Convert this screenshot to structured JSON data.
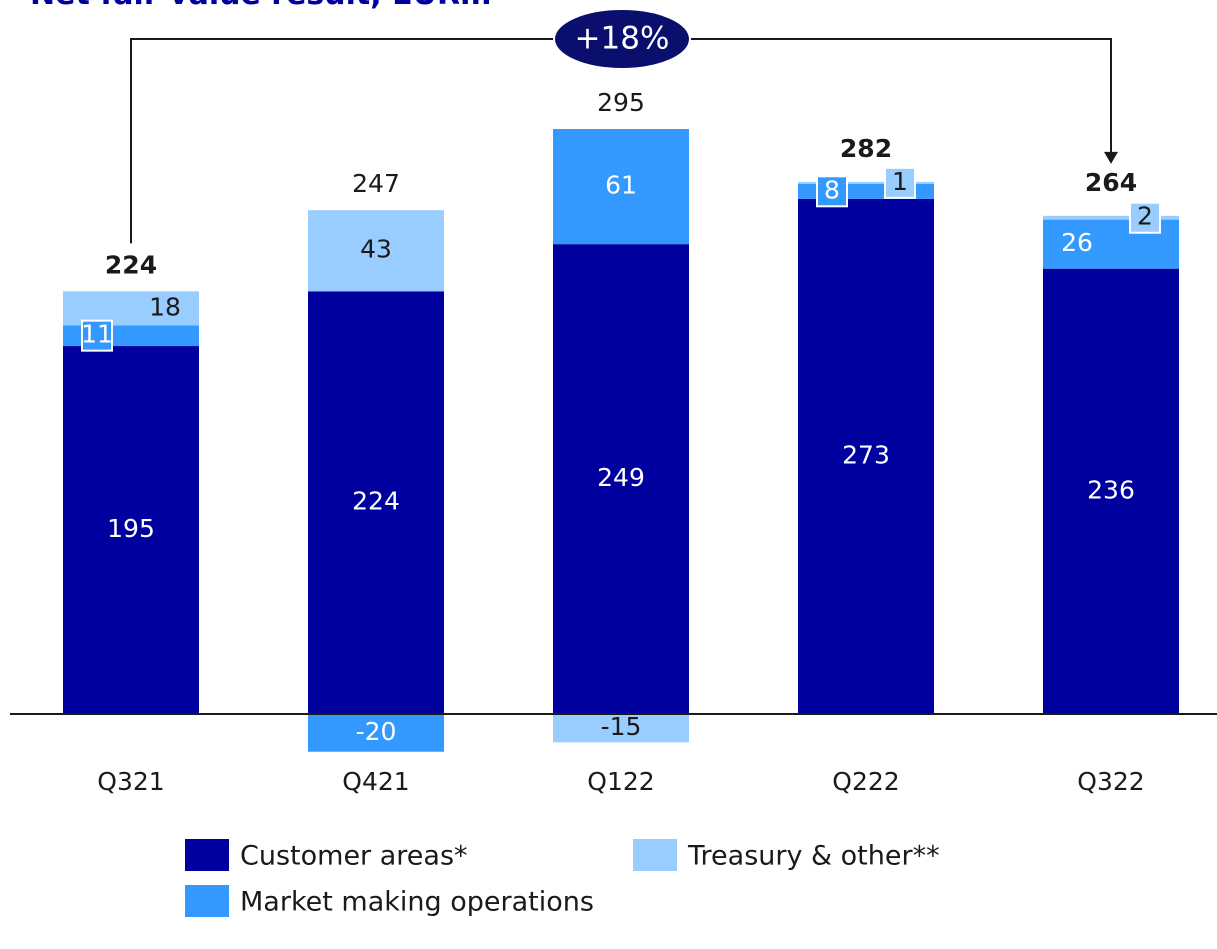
{
  "chart_data": {
    "type": "stacked-bar",
    "title": "Net fair value result, EURm",
    "categories": [
      "Q321",
      "Q421",
      "Q122",
      "Q222",
      "Q322"
    ],
    "series": [
      {
        "name": "Customer areas*",
        "color": "#00009f",
        "label_color": "#ffffff",
        "values": [
          195,
          224,
          249,
          273,
          236
        ]
      },
      {
        "name": "Market making operations",
        "color": "#3399ff",
        "label_color": "#ffffff",
        "values": [
          11,
          -20,
          61,
          8,
          26
        ]
      },
      {
        "name": "Treasury & other**",
        "color": "#99ccff",
        "label_color": "#1a1a1a",
        "values": [
          18,
          43,
          -15,
          1,
          2
        ]
      }
    ],
    "totals": [
      224,
      247,
      295,
      282,
      264
    ],
    "total_bold": [
      true,
      false,
      false,
      true,
      true
    ],
    "annotation": "+18%",
    "annotation_color": "#0a0f6e",
    "ylim": [
      -30,
      330
    ]
  }
}
